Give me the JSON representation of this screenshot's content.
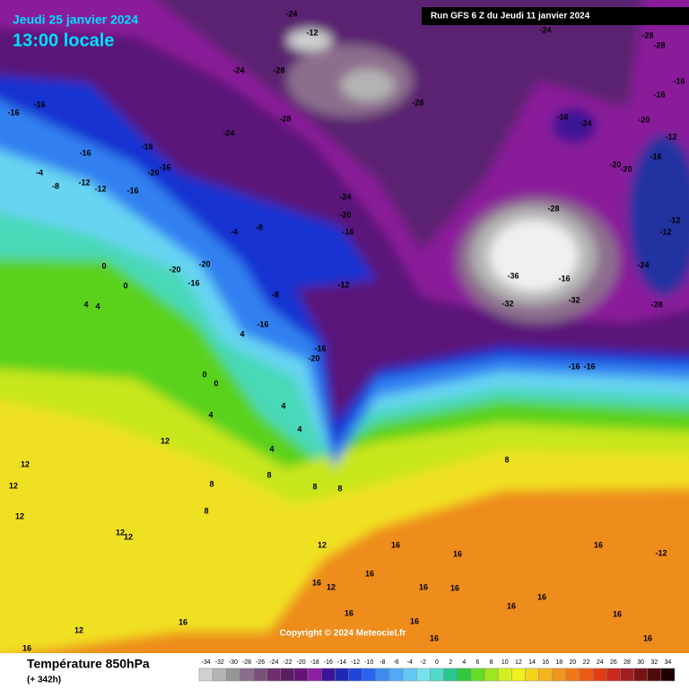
{
  "header": {
    "date": "Jeudi 25 janvier 2024",
    "time": "13:00 locale",
    "run": "Run GFS 6 Z du Jeudi 11 janvier 2024"
  },
  "map": {
    "labels": [
      -24,
      -12,
      -24,
      -28,
      -28,
      -24,
      -28,
      -16,
      -16,
      -16,
      -16,
      -28,
      -28,
      -16,
      -24,
      -20,
      -24,
      -12,
      -16,
      -16,
      -20,
      -16,
      -4,
      -8,
      -12,
      -12,
      -16,
      -20,
      -20,
      -16,
      -24,
      -20,
      -16,
      -28,
      -12,
      -12,
      -8,
      -4,
      -24,
      -36,
      -16,
      -32,
      -32,
      -28,
      -20,
      -16,
      -20,
      -12,
      -8,
      0,
      0,
      4,
      4,
      -16,
      4,
      -16,
      -20,
      -16,
      -16,
      0,
      0,
      4,
      4,
      4,
      4,
      12,
      12,
      12,
      8,
      8,
      8,
      8,
      8,
      8,
      12,
      12,
      12,
      12,
      16,
      16,
      16,
      -12,
      16,
      16,
      12,
      16,
      16,
      16,
      16,
      16,
      16,
      12,
      16,
      16,
      16,
      16,
      16
    ]
  },
  "copyright": "Copyright © 2024 Meteociel.fr",
  "legend": {
    "title": "Température 850hPa",
    "forecast": "(+ 342h)",
    "ticks": [
      -34,
      -32,
      -30,
      -28,
      -26,
      -24,
      -22,
      -20,
      -18,
      -16,
      -14,
      -12,
      -10,
      -8,
      -6,
      -4,
      -2,
      0,
      2,
      4,
      6,
      8,
      10,
      12,
      14,
      16,
      18,
      20,
      22,
      24,
      26,
      28,
      30,
      32,
      34
    ],
    "colors": [
      "#d0d0d0",
      "#b4b4b4",
      "#969696",
      "#8c6e8c",
      "#785078",
      "#6e2d6e",
      "#5a1e64",
      "#641478",
      "#8c1ea0",
      "#3c1496",
      "#1e28b4",
      "#1e46dc",
      "#2864f0",
      "#3c8cf0",
      "#50aaf5",
      "#64c8f5",
      "#78e1f0",
      "#50dcc8",
      "#28c88c",
      "#32c83c",
      "#64dc28",
      "#a0e61e",
      "#d2f01e",
      "#f0f01e",
      "#f5d21e",
      "#f5b41e",
      "#f0961e",
      "#f07814",
      "#eb5a14",
      "#e13c14",
      "#c8281e",
      "#a01e1e",
      "#781414",
      "#500a0a",
      "#1e0000"
    ]
  }
}
